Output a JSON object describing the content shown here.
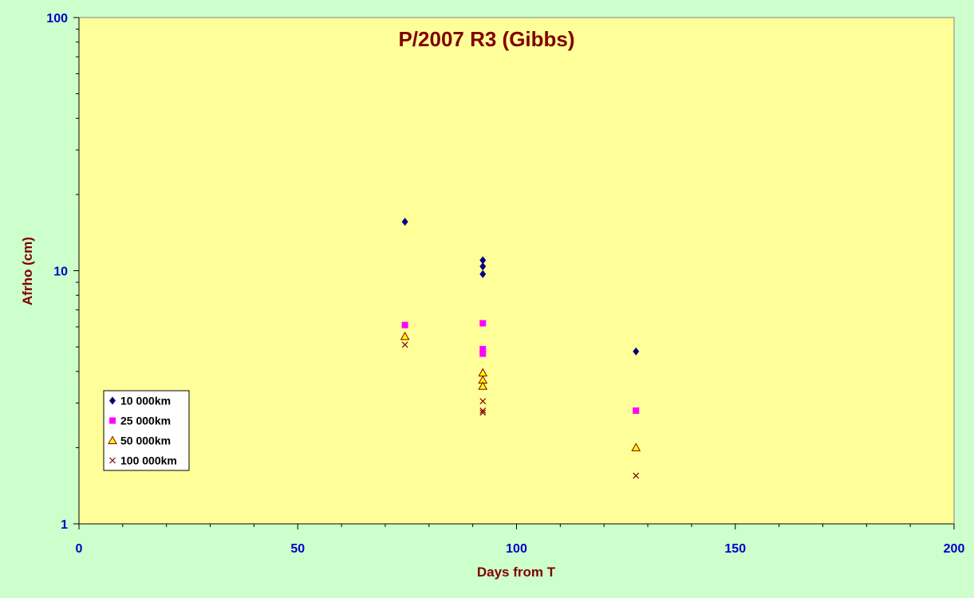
{
  "chart_data": {
    "type": "scatter",
    "title": "P/2007 R3 (Gibbs)",
    "xlabel": "Days from T",
    "ylabel": "Afrho (cm)",
    "xlim": [
      0,
      200
    ],
    "ylim": [
      1,
      100
    ],
    "yscale": "log",
    "x_ticks": [
      0,
      50,
      100,
      150,
      200
    ],
    "y_ticks": [
      1,
      10,
      100
    ],
    "grid": false,
    "legend_position": "bottom-left",
    "plot_background": "#ffff99",
    "page_background": "#ccffcc",
    "series": [
      {
        "name": "10 000km",
        "marker": "diamond",
        "color": "#000080",
        "points": [
          [
            74.5,
            15.6
          ],
          [
            92.3,
            11.0
          ],
          [
            92.3,
            10.4
          ],
          [
            92.3,
            9.7
          ],
          [
            127.3,
            4.8
          ]
        ]
      },
      {
        "name": "25 000km",
        "marker": "square",
        "color": "#ff00ff",
        "points": [
          [
            74.5,
            6.1
          ],
          [
            92.3,
            6.2
          ],
          [
            92.3,
            4.9
          ],
          [
            92.3,
            4.7
          ],
          [
            127.3,
            2.8
          ]
        ]
      },
      {
        "name": "50 000km",
        "marker": "triangle",
        "color": "#ffff00",
        "edge": "#800000",
        "points": [
          [
            74.5,
            5.5
          ],
          [
            92.3,
            3.95
          ],
          [
            92.3,
            3.7
          ],
          [
            92.3,
            3.5
          ],
          [
            127.3,
            2.0
          ]
        ]
      },
      {
        "name": "100 000km",
        "marker": "x",
        "color": "#800000",
        "points": [
          [
            74.5,
            5.1
          ],
          [
            92.3,
            3.05
          ],
          [
            92.3,
            2.8
          ],
          [
            92.3,
            2.75
          ],
          [
            127.3,
            1.55
          ]
        ]
      }
    ]
  }
}
